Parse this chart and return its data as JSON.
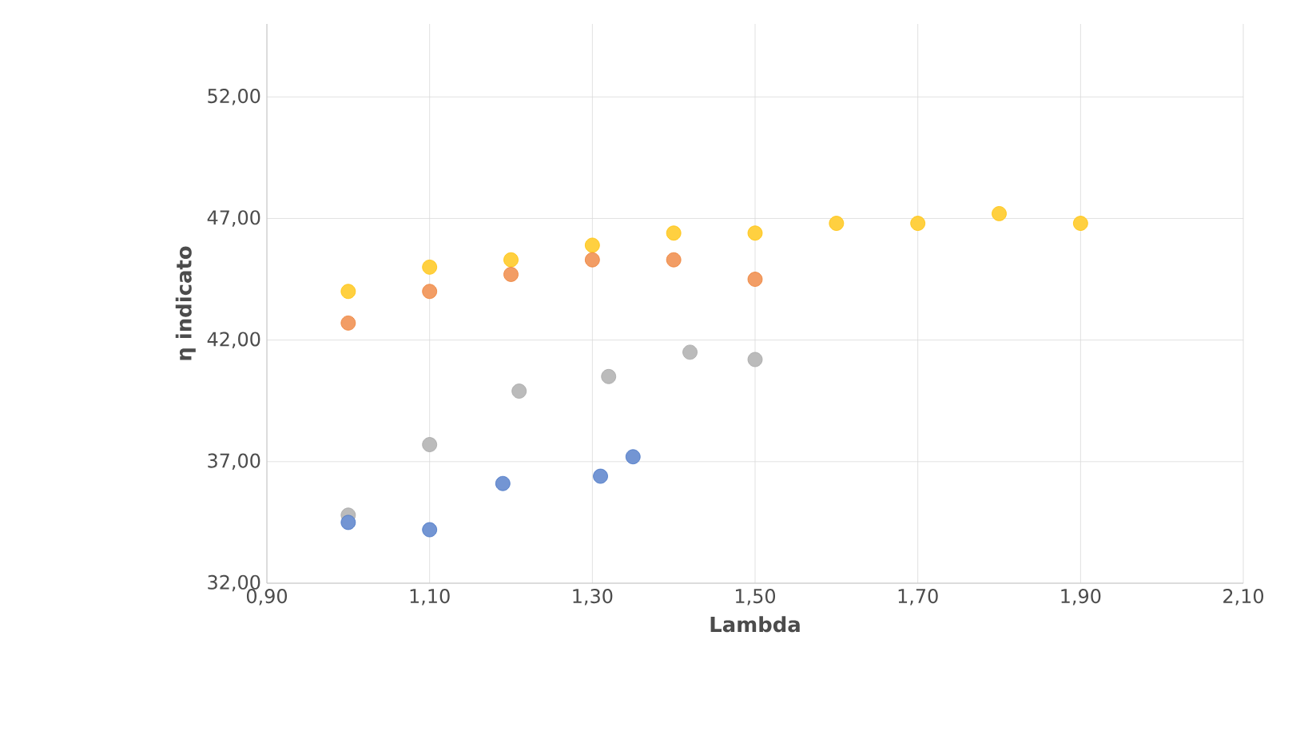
{
  "chart_data": {
    "type": "scatter",
    "xlabel": "Lambda",
    "ylabel": "η indicato",
    "xlim": [
      0.9,
      2.1
    ],
    "ylim": [
      32,
      55
    ],
    "xticks": [
      {
        "value": 0.9,
        "label": "0,90"
      },
      {
        "value": 1.1,
        "label": "1,10"
      },
      {
        "value": 1.3,
        "label": "1,30"
      },
      {
        "value": 1.5,
        "label": "1,50"
      },
      {
        "value": 1.7,
        "label": "1,70"
      },
      {
        "value": 1.9,
        "label": "1,90"
      },
      {
        "value": 2.1,
        "label": "2,10"
      }
    ],
    "yticks": [
      {
        "value": 32,
        "label": "32,00"
      },
      {
        "value": 37,
        "label": "37,00"
      },
      {
        "value": 42,
        "label": "42,00"
      },
      {
        "value": 47,
        "label": "47,00"
      },
      {
        "value": 52,
        "label": "52,00"
      }
    ],
    "grid": true,
    "marker": "circle",
    "series": [
      {
        "color": "#ffc000",
        "x": [
          1.0,
          1.1,
          1.2,
          1.3,
          1.4,
          1.5,
          1.6,
          1.7,
          1.8,
          1.9
        ],
        "values": [
          44.0,
          45.0,
          45.3,
          45.9,
          46.4,
          46.4,
          46.8,
          46.8,
          47.2,
          46.8
        ]
      },
      {
        "color": "#ed7d31",
        "x": [
          1.0,
          1.1,
          1.2,
          1.3,
          1.4,
          1.5
        ],
        "values": [
          42.7,
          44.0,
          44.7,
          45.3,
          45.3,
          44.5
        ]
      },
      {
        "color": "#a5a5a5",
        "x": [
          1.0,
          1.1,
          1.21,
          1.32,
          1.42,
          1.5
        ],
        "values": [
          34.8,
          37.7,
          39.9,
          40.5,
          41.5,
          41.2
        ]
      },
      {
        "color": "#4472c4",
        "x": [
          1.0,
          1.1,
          1.19,
          1.31,
          1.35
        ],
        "values": [
          34.5,
          34.2,
          36.1,
          36.4,
          37.2
        ]
      }
    ]
  }
}
